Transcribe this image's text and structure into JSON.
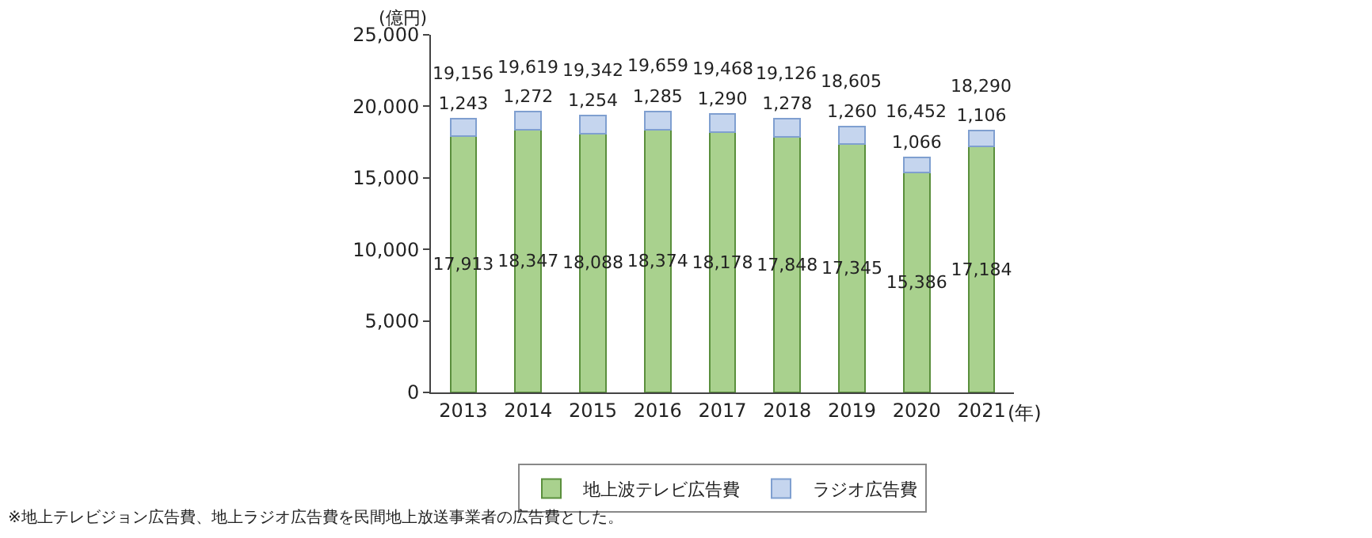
{
  "chart_data": {
    "type": "bar",
    "stacked": true,
    "categories": [
      "2013",
      "2014",
      "2015",
      "2016",
      "2017",
      "2018",
      "2019",
      "2020",
      "2021"
    ],
    "series": [
      {
        "name": "地上波テレビ広告費",
        "color": "#a9d18e",
        "values": [
          17913,
          18347,
          18088,
          18374,
          18178,
          17848,
          17345,
          15386,
          17184
        ],
        "value_labels": [
          "17,913",
          "18,347",
          "18,088",
          "18,374",
          "18,178",
          "17,848",
          "17,345",
          "15,386",
          "17,184"
        ]
      },
      {
        "name": "ラジオ広告費",
        "color": "#c5d5ee",
        "values": [
          1243,
          1272,
          1254,
          1285,
          1290,
          1278,
          1260,
          1066,
          1106
        ],
        "value_labels": [
          "1,243",
          "1,272",
          "1,254",
          "1,285",
          "1,290",
          "1,278",
          "1,260",
          "1,066",
          "1,106"
        ]
      }
    ],
    "totals": [
      "19,156",
      "19,619",
      "19,342",
      "19,659",
      "19,468",
      "19,126",
      "18,605",
      "16,452",
      "18,290"
    ],
    "ylabel": "(億円)",
    "xlabel": "(年)",
    "ylim": [
      0,
      25000
    ],
    "yticks": [
      0,
      {
        "value": 5000,
        "label": "5,000"
      },
      {
        "value": 10000,
        "label": "10,000"
      },
      {
        "value": 15000,
        "label": "15,000"
      },
      {
        "value": 20000,
        "label": "20,000"
      },
      {
        "value": 25000,
        "label": "25,000"
      }
    ],
    "legend": "bottom",
    "annotations": [
      "※地上テレビジョン広告費、地上ラジオ広告費を民間地上放送事業者の広告費とした。"
    ]
  }
}
